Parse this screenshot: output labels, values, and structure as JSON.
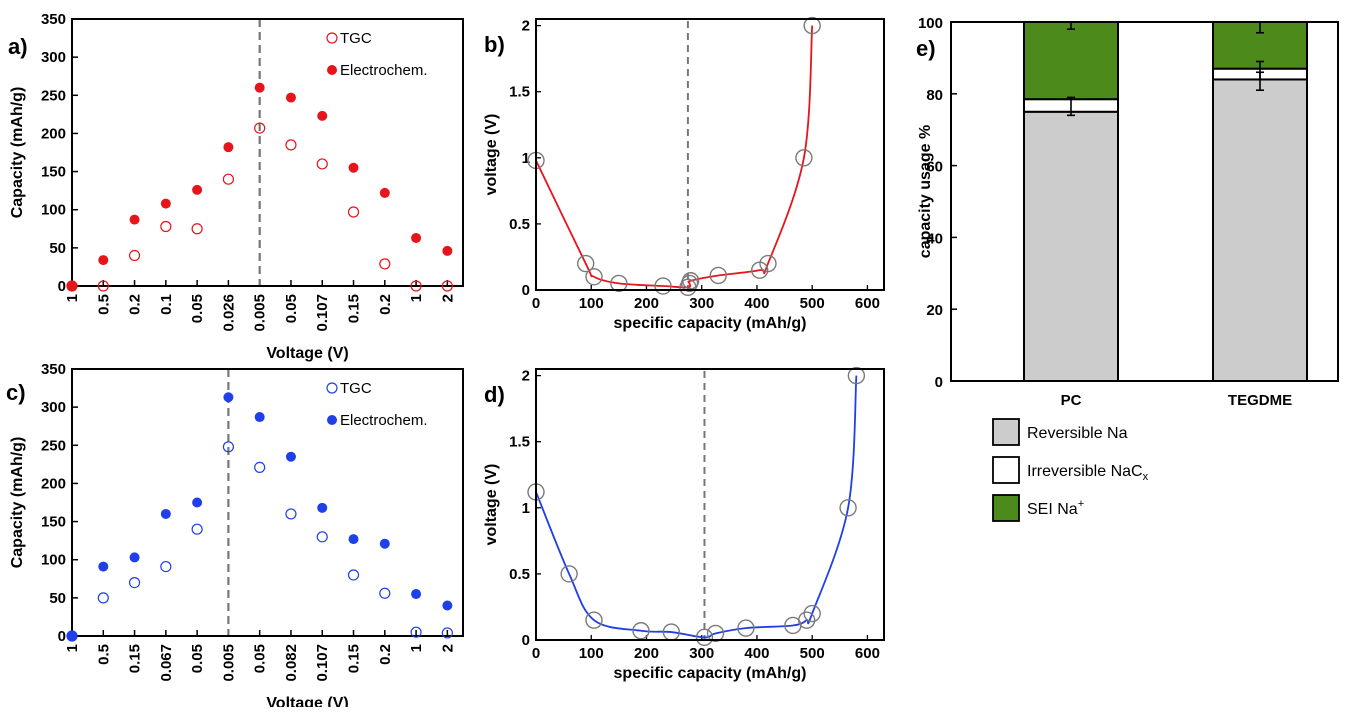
{
  "chart_data": [
    {
      "panel": "a)",
      "type": "scatter",
      "xlabel": "Voltage (V)",
      "ylabel": "Capacity (mAh/g)",
      "ylim": [
        0,
        350
      ],
      "yticks": [
        0,
        50,
        100,
        150,
        200,
        250,
        300,
        350
      ],
      "categories": [
        "1",
        "0.5",
        "0.2",
        "0.1",
        "0.05",
        "0.026",
        "0.005",
        "0.05",
        "0.107",
        "0.15",
        "0.2",
        "1",
        "2"
      ],
      "vline_index": 6,
      "legend_position": "top-right",
      "series": [
        {
          "name": "TGC",
          "marker": "open",
          "color": "#e8141c",
          "values": [
            0,
            0,
            40,
            78,
            75,
            140,
            207,
            185,
            160,
            97,
            29,
            0,
            0
          ]
        },
        {
          "name": "Electrochem.",
          "marker": "filled",
          "color": "#e8141c",
          "values": [
            0,
            34,
            87,
            108,
            126,
            182,
            260,
            247,
            223,
            155,
            122,
            63,
            46
          ]
        }
      ]
    },
    {
      "panel": "b)",
      "type": "line",
      "xlabel": "specific capacity (mAh/g)",
      "ylabel": "voltage (V)",
      "xlim": [
        0,
        630
      ],
      "ylim": [
        0,
        2.05
      ],
      "xticks": [
        0,
        100,
        200,
        300,
        400,
        500,
        600
      ],
      "yticks": [
        0,
        0.5,
        1,
        1.5,
        2
      ],
      "vline_x": 275,
      "color": "#e8141c",
      "points": [
        [
          0,
          0.98
        ],
        [
          90,
          0.2
        ],
        [
          105,
          0.1
        ],
        [
          150,
          0.05
        ],
        [
          230,
          0.03
        ],
        [
          275,
          0.02
        ],
        [
          278,
          0.05
        ],
        [
          280,
          0.07
        ],
        [
          330,
          0.11
        ],
        [
          405,
          0.15
        ],
        [
          420,
          0.2
        ],
        [
          485,
          1.0
        ],
        [
          500,
          2.0
        ]
      ]
    },
    {
      "panel": "c)",
      "type": "scatter",
      "xlabel": "Voltage (V)",
      "ylabel": "Capacity (mAh/g)",
      "ylim": [
        0,
        350
      ],
      "yticks": [
        0,
        50,
        100,
        150,
        200,
        250,
        300,
        350
      ],
      "categories": [
        "1",
        "0.5",
        "0.15",
        "0.067",
        "0.05",
        "0.005",
        "0.05",
        "0.082",
        "0.107",
        "0.15",
        "0.2",
        "1",
        "2"
      ],
      "vline_index": 5,
      "legend_position": "top-right",
      "series": [
        {
          "name": "TGC",
          "marker": "open",
          "color": "#1f3fe8",
          "values": [
            0,
            50,
            70,
            91,
            140,
            248,
            221,
            160,
            130,
            80,
            56,
            5,
            4
          ]
        },
        {
          "name": "Electrochem.",
          "marker": "filled",
          "color": "#1f3fe8",
          "values": [
            0,
            91,
            103,
            160,
            175,
            313,
            287,
            235,
            168,
            127,
            121,
            55,
            40
          ]
        }
      ]
    },
    {
      "panel": "d)",
      "type": "line",
      "xlabel": "specific capacity (mAh/g)",
      "ylabel": "voltage (V)",
      "xlim": [
        0,
        630
      ],
      "ylim": [
        0,
        2.05
      ],
      "xticks": [
        0,
        100,
        200,
        300,
        400,
        500,
        600
      ],
      "yticks": [
        0,
        0.5,
        1,
        1.5,
        2
      ],
      "vline_x": 305,
      "color": "#1f3fe8",
      "points": [
        [
          0,
          1.12
        ],
        [
          60,
          0.5
        ],
        [
          105,
          0.15
        ],
        [
          190,
          0.07
        ],
        [
          245,
          0.06
        ],
        [
          305,
          0.02
        ],
        [
          325,
          0.05
        ],
        [
          380,
          0.09
        ],
        [
          465,
          0.11
        ],
        [
          490,
          0.15
        ],
        [
          500,
          0.2
        ],
        [
          565,
          1.0
        ],
        [
          580,
          2.0
        ]
      ]
    },
    {
      "panel": "e)",
      "type": "bar",
      "stacked": true,
      "ylabel": "capacity usage %",
      "ylim": [
        0,
        100
      ],
      "yticks": [
        0,
        20,
        40,
        60,
        80,
        100
      ],
      "categories": [
        "PC",
        "TEGDME"
      ],
      "legend_position": "bottom-left",
      "series": [
        {
          "name": "Reversible Na",
          "color": "#cccccc",
          "values": [
            75,
            84
          ]
        },
        {
          "name": "Irreversible NaC",
          "name_sub": "x",
          "color": "#ffffff",
          "values": [
            3.5,
            3
          ]
        },
        {
          "name": "SEI Na",
          "name_sup": "+",
          "color": "#4d8a1c",
          "values": [
            21.5,
            13
          ]
        }
      ],
      "error_bars": [
        [
          76.5,
          2.5
        ],
        [
          99,
          1
        ],
        [
          83.5,
          2.5
        ],
        [
          86.5,
          2.5
        ],
        [
          98.5,
          1.5
        ]
      ]
    }
  ]
}
